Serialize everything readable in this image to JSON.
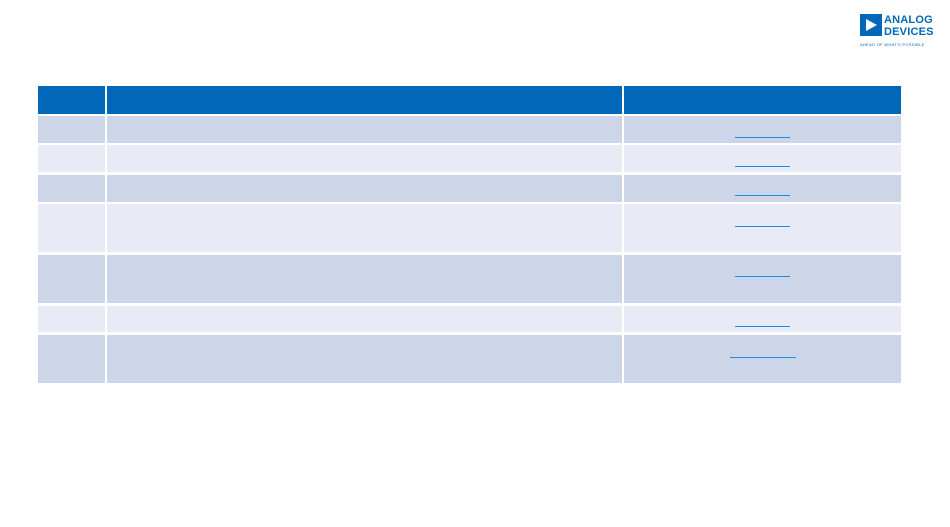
{
  "logo": {
    "line1": "ANALOG",
    "line2": "DEVICES",
    "tagline": "AHEAD OF WHAT'S POSSIBLE"
  }
}
